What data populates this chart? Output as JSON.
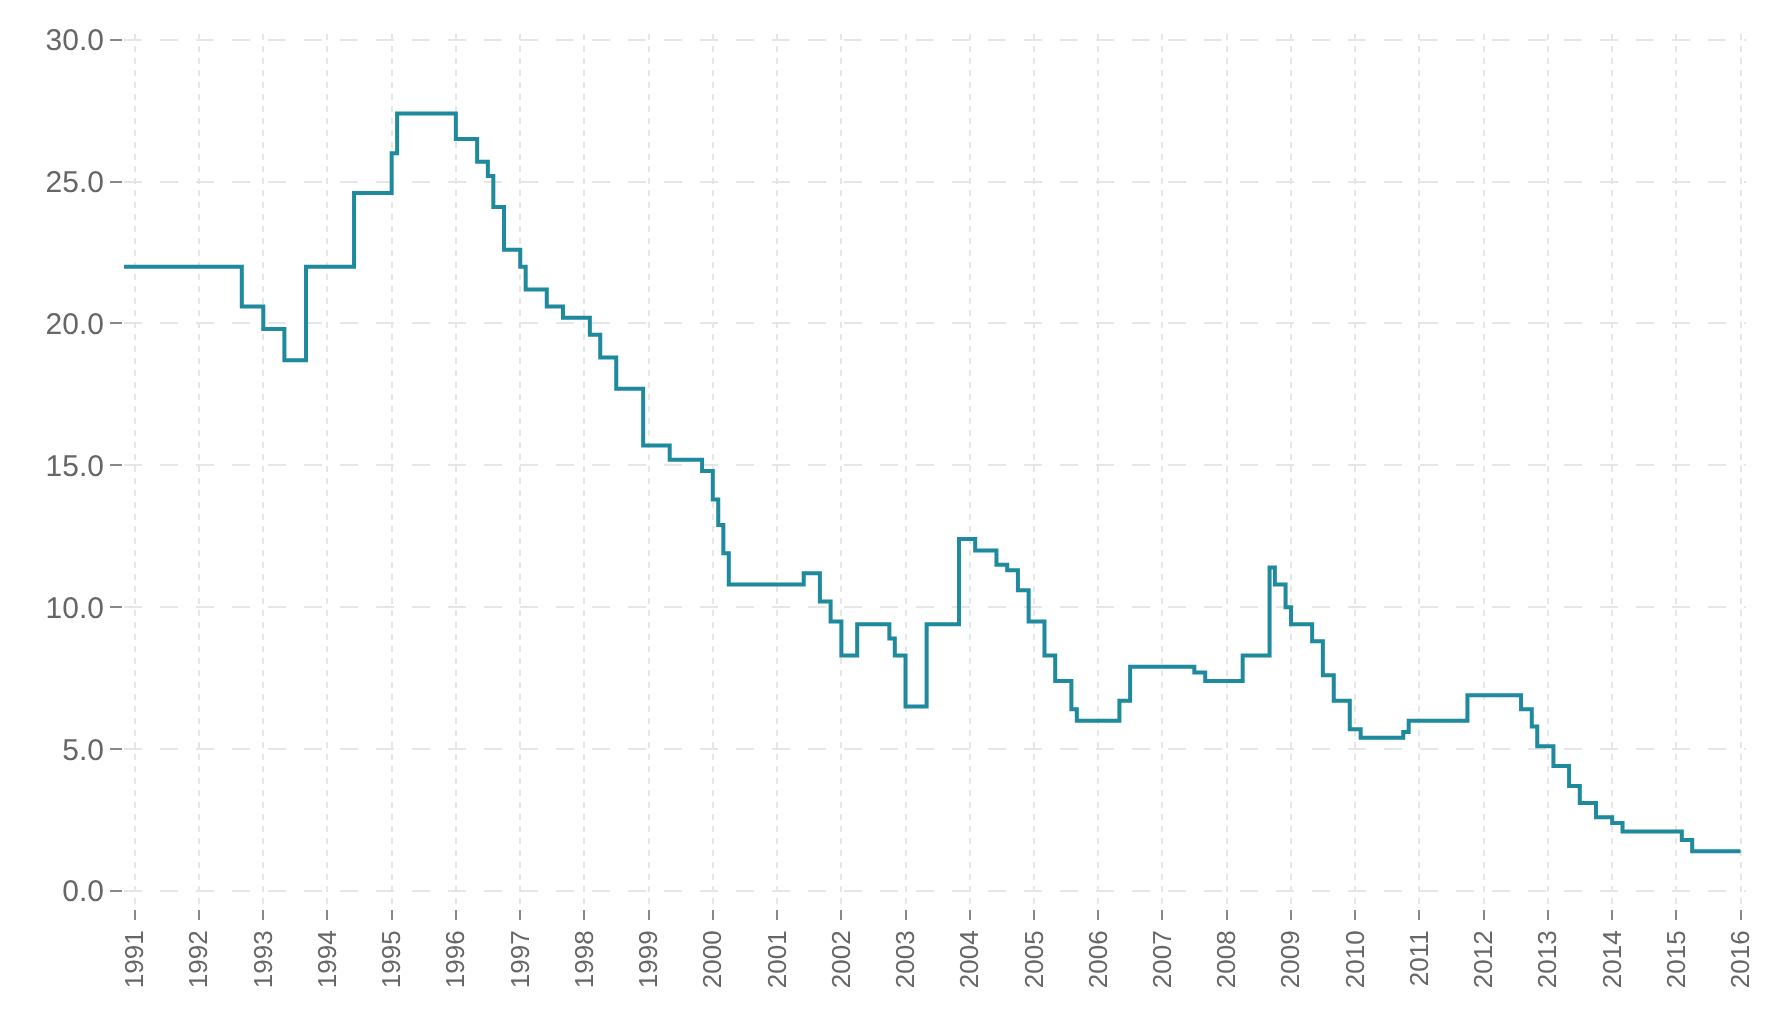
{
  "chart_data": {
    "type": "step",
    "x": [
      "1990-11",
      "1992-09",
      "1993-01",
      "1993-05",
      "1993-09",
      "1994-06",
      "1995-01",
      "1995-02",
      "1996-01",
      "1996-05",
      "1996-07",
      "1996-08",
      "1996-10",
      "1997-01",
      "1997-02",
      "1997-06",
      "1997-09",
      "1998-02",
      "1998-04",
      "1998-07",
      "1998-12",
      "1999-05",
      "1999-11",
      "2000-01",
      "2000-02",
      "2000-03",
      "2000-04",
      "2001-06",
      "2001-09",
      "2001-11",
      "2002-01",
      "2002-04",
      "2002-10",
      "2002-11",
      "2003-01",
      "2003-05",
      "2003-11",
      "2004-02",
      "2004-06",
      "2004-08",
      "2004-10",
      "2004-12",
      "2005-03",
      "2005-05",
      "2005-08",
      "2005-09",
      "2006-05",
      "2006-07",
      "2007-07",
      "2007-09",
      "2008-04",
      "2008-09",
      "2008-10",
      "2008-12",
      "2009-01",
      "2009-05",
      "2009-07",
      "2009-09",
      "2009-12",
      "2010-02",
      "2010-10",
      "2010-11",
      "2011-10",
      "2012-08",
      "2012-10",
      "2012-11",
      "2013-02",
      "2013-05",
      "2013-07",
      "2013-10",
      "2014-01",
      "2014-03",
      "2015-02",
      "2015-04",
      "2016-01"
    ],
    "series": [
      {
        "color": "#1f8a9e",
        "values": [
          22,
          20.6,
          19.8,
          18.7,
          22,
          24.6,
          26,
          27.4,
          26.5,
          25.7,
          25.2,
          24.1,
          22.6,
          22,
          21.2,
          20.6,
          20.2,
          19.6,
          18.8,
          17.7,
          15.7,
          15.2,
          14.8,
          13.8,
          12.9,
          11.9,
          10.8,
          11.2,
          10.2,
          9.5,
          8.3,
          9.4,
          8.9,
          8.3,
          6.5,
          9.4,
          12.4,
          12.0,
          11.5,
          11.3,
          10.6,
          9.5,
          8.3,
          7.4,
          6.4,
          6.0,
          6.7,
          7.9,
          7.7,
          7.4,
          8.3,
          11.4,
          10.8,
          10.0,
          9.4,
          8.8,
          7.6,
          6.7,
          5.7,
          5.4,
          5.6,
          6.0,
          6.9,
          6.4,
          5.8,
          5.1,
          4.4,
          3.7,
          3.1,
          2.6,
          2.4,
          2.1,
          1.8,
          1.4,
          1.4
        ]
      }
    ],
    "xlim": [
      "1990-11",
      "2016-02"
    ],
    "xticks": [
      {
        "value": "1991",
        "label": "1991"
      },
      {
        "value": "1992",
        "label": "1992"
      },
      {
        "value": "1993",
        "label": "1993"
      },
      {
        "value": "1994",
        "label": "1994"
      },
      {
        "value": "1995",
        "label": "1995"
      },
      {
        "value": "1996",
        "label": "1996"
      },
      {
        "value": "1997",
        "label": "1997"
      },
      {
        "value": "1998",
        "label": "1998"
      },
      {
        "value": "1999",
        "label": "1999"
      },
      {
        "value": "2000",
        "label": "2000"
      },
      {
        "value": "2001",
        "label": "2001"
      },
      {
        "value": "2002",
        "label": "2002"
      },
      {
        "value": "2003",
        "label": "2003"
      },
      {
        "value": "2004",
        "label": "2004"
      },
      {
        "value": "2005",
        "label": "2005"
      },
      {
        "value": "2006",
        "label": "2006"
      },
      {
        "value": "2007",
        "label": "2007"
      },
      {
        "value": "2008",
        "label": "2008"
      },
      {
        "value": "2009",
        "label": "2009"
      },
      {
        "value": "2010",
        "label": "2010"
      },
      {
        "value": "2011",
        "label": "2011"
      },
      {
        "value": "2012",
        "label": "2012"
      },
      {
        "value": "2013",
        "label": "2013"
      },
      {
        "value": "2014",
        "label": "2014"
      },
      {
        "value": "2015",
        "label": "2015"
      },
      {
        "value": "2016",
        "label": "2016"
      }
    ],
    "ylim": [
      -0.6,
      30.2
    ],
    "yticks": [
      {
        "value": 0,
        "label": "0.0"
      },
      {
        "value": 5,
        "label": "5.0"
      },
      {
        "value": 10,
        "label": "10.0"
      },
      {
        "value": 15,
        "label": "15.0"
      },
      {
        "value": 20,
        "label": "20.0"
      },
      {
        "value": 25,
        "label": "25.0"
      },
      {
        "value": 30,
        "label": "30.0"
      }
    ],
    "grid": true
  }
}
